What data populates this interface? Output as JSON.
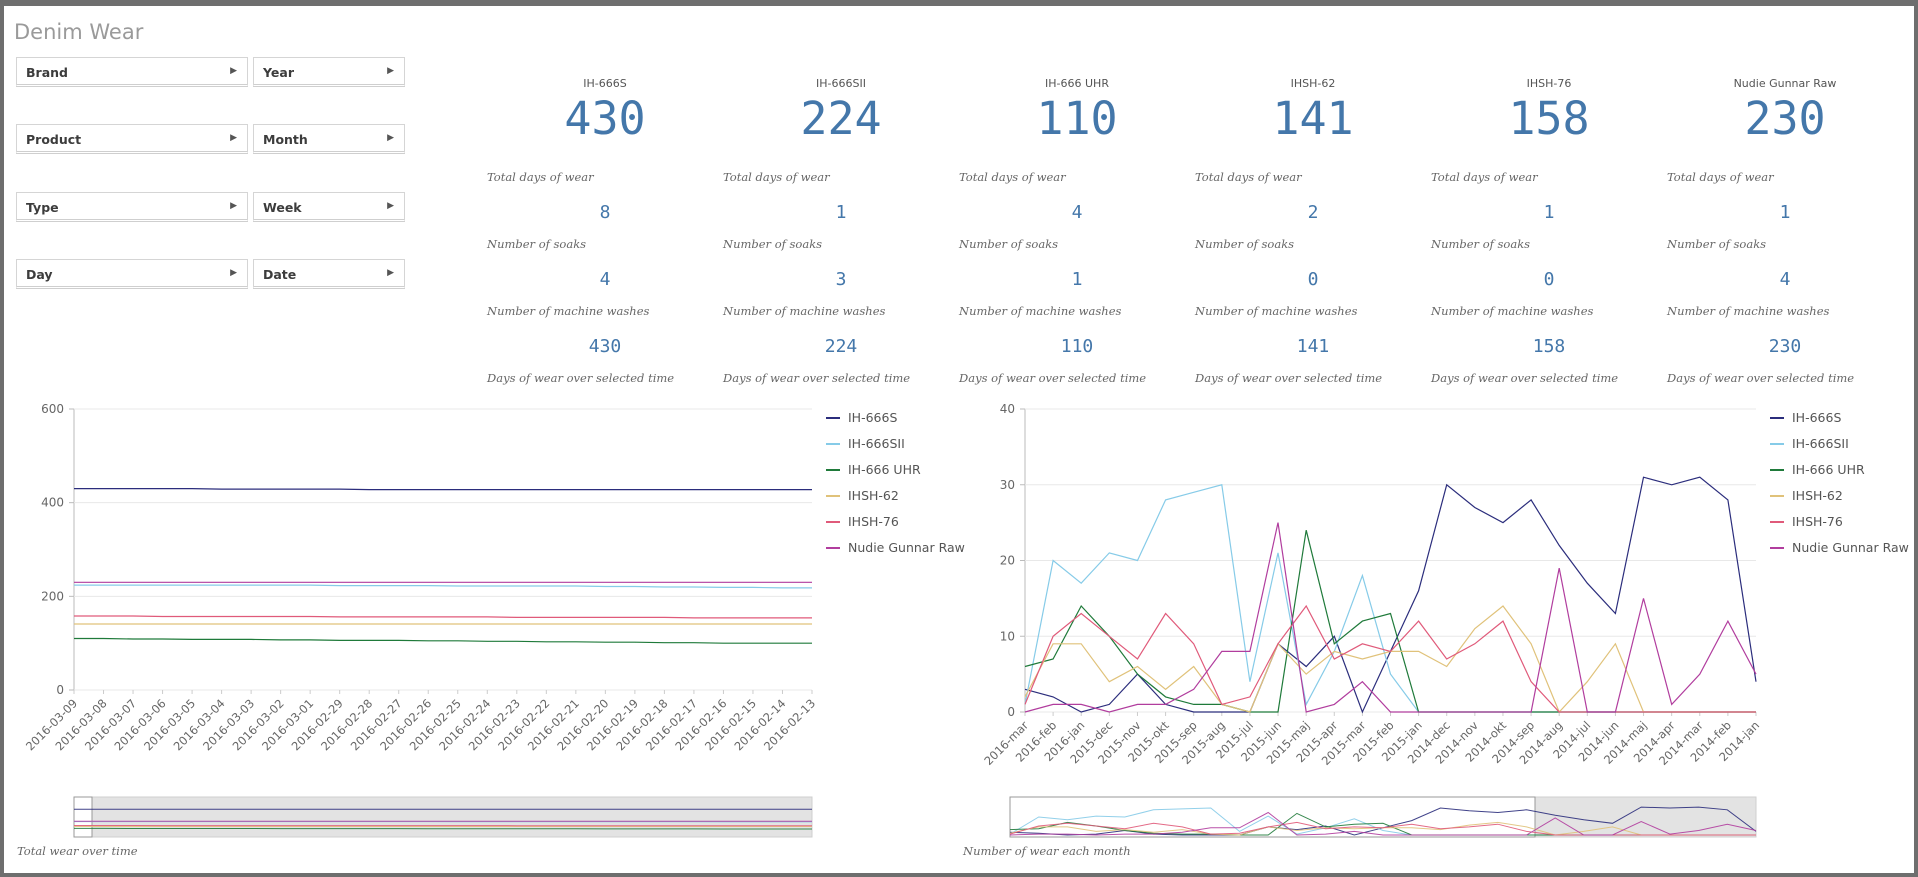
{
  "app": {
    "title": "Denim Wear"
  },
  "filters": [
    {
      "label": "Brand"
    },
    {
      "label": "Year"
    },
    {
      "label": "Product"
    },
    {
      "label": "Month"
    },
    {
      "label": "Type"
    },
    {
      "label": "Week"
    },
    {
      "label": "Day"
    },
    {
      "label": "Date"
    }
  ],
  "kpis": [
    {
      "name": "IH-666S",
      "total": "430",
      "soaks": "8",
      "washes": "4",
      "selected": "430"
    },
    {
      "name": "IH-666SII",
      "total": "224",
      "soaks": "1",
      "washes": "3",
      "selected": "224"
    },
    {
      "name": "IH-666 UHR",
      "total": "110",
      "soaks": "4",
      "washes": "1",
      "selected": "110"
    },
    {
      "name": "IHSH-62",
      "total": "141",
      "soaks": "2",
      "washes": "0",
      "selected": "141"
    },
    {
      "name": "IHSH-76",
      "total": "158",
      "soaks": "1",
      "washes": "0",
      "selected": "158"
    },
    {
      "name": "Nudie Gunnar Raw",
      "total": "230",
      "soaks": "1",
      "washes": "4",
      "selected": "230"
    }
  ],
  "kpi_labels": {
    "total": "Total days of wear",
    "soaks": "Number of soaks",
    "washes": "Number of machine washes",
    "selected": "Days of wear over selected time"
  },
  "colors": {
    "IH-666S": "#2b2d7c",
    "IH-666SII": "#86cbe8",
    "IH-666 UHR": "#1f7a3a",
    "IHSH-62": "#e0c27a",
    "IHSH-76": "#e05a7a",
    "Nudie Gunnar Raw": "#b13d9e",
    "kpi": "#4477aa"
  },
  "chart_data": [
    {
      "type": "line",
      "title": "Total wear over time",
      "ylim": [
        0,
        600
      ],
      "yticks": [
        0,
        200,
        400,
        600
      ],
      "x": [
        "2016-03-09",
        "2016-03-08",
        "2016-03-07",
        "2016-03-06",
        "2016-03-05",
        "2016-03-04",
        "2016-03-03",
        "2016-03-02",
        "2016-03-01",
        "2016-02-29",
        "2016-02-28",
        "2016-02-27",
        "2016-02-26",
        "2016-02-25",
        "2016-02-24",
        "2016-02-23",
        "2016-02-22",
        "2016-02-21",
        "2016-02-20",
        "2016-02-19",
        "2016-02-18",
        "2016-02-17",
        "2016-02-16",
        "2016-02-15",
        "2016-02-14",
        "2016-02-13"
      ],
      "series": [
        {
          "name": "IH-666S",
          "values": [
            430,
            430,
            430,
            430,
            430,
            429,
            429,
            429,
            429,
            429,
            428,
            428,
            428,
            428,
            428,
            428,
            428,
            428,
            428,
            428,
            428,
            428,
            428,
            428,
            428,
            428
          ]
        },
        {
          "name": "IH-666SII",
          "values": [
            224,
            224,
            224,
            224,
            224,
            224,
            224,
            224,
            224,
            223,
            223,
            223,
            223,
            222,
            222,
            222,
            222,
            222,
            221,
            221,
            220,
            220,
            219,
            219,
            218,
            218
          ]
        },
        {
          "name": "IH-666 UHR",
          "values": [
            110,
            110,
            109,
            109,
            108,
            108,
            108,
            107,
            107,
            106,
            106,
            106,
            105,
            105,
            104,
            104,
            103,
            103,
            102,
            102,
            101,
            101,
            100,
            100,
            100,
            100
          ]
        },
        {
          "name": "IHSH-62",
          "values": [
            141,
            141,
            141,
            141,
            141,
            141,
            141,
            141,
            141,
            141,
            141,
            141,
            141,
            141,
            141,
            141,
            141,
            141,
            141,
            141,
            141,
            141,
            141,
            141,
            141,
            141
          ]
        },
        {
          "name": "IHSH-76",
          "values": [
            158,
            158,
            158,
            157,
            157,
            157,
            157,
            157,
            157,
            156,
            156,
            156,
            156,
            156,
            156,
            155,
            155,
            155,
            155,
            155,
            155,
            154,
            154,
            154,
            154,
            154
          ]
        },
        {
          "name": "Nudie Gunnar Raw",
          "values": [
            230,
            230,
            230,
            230,
            230,
            230,
            230,
            230,
            230,
            230,
            230,
            230,
            230,
            230,
            230,
            230,
            230,
            230,
            230,
            230,
            230,
            230,
            230,
            230,
            230,
            230
          ]
        }
      ],
      "legend": "right"
    },
    {
      "type": "line",
      "title": "Number of wear each month",
      "ylim": [
        0,
        40
      ],
      "yticks": [
        0,
        10,
        20,
        30,
        40
      ],
      "x": [
        "2016-mar",
        "2016-feb",
        "2016-jan",
        "2015-dec",
        "2015-nov",
        "2015-okt",
        "2015-sep",
        "2015-aug",
        "2015-jul",
        "2015-jun",
        "2015-maj",
        "2015-apr",
        "2015-mar",
        "2015-feb",
        "2015-jan",
        "2014-dec",
        "2014-nov",
        "2014-okt",
        "2014-sep",
        "2014-aug",
        "2014-jul",
        "2014-jun",
        "2014-maj",
        "2014-apr",
        "2014-mar",
        "2014-feb",
        "2014-jan"
      ],
      "series": [
        {
          "name": "IH-666S",
          "values": [
            3,
            2,
            0,
            1,
            5,
            1,
            0,
            0,
            0,
            9,
            6,
            10,
            0,
            8,
            16,
            30,
            27,
            25,
            28,
            22,
            17,
            13,
            31,
            30,
            31,
            28,
            4
          ]
        },
        {
          "name": "IH-666SII",
          "values": [
            1,
            20,
            17,
            21,
            20,
            28,
            29,
            30,
            4,
            21,
            1,
            8,
            18,
            5,
            0,
            0,
            0,
            0,
            0,
            0,
            0,
            0,
            0,
            0,
            0,
            0,
            0
          ]
        },
        {
          "name": "IH-666 UHR",
          "values": [
            6,
            7,
            14,
            10,
            5,
            2,
            1,
            1,
            0,
            0,
            24,
            9,
            12,
            13,
            0,
            0,
            0,
            0,
            0,
            0,
            0,
            0,
            0,
            0,
            0,
            0,
            0
          ]
        },
        {
          "name": "IHSH-62",
          "values": [
            2,
            9,
            9,
            4,
            6,
            3,
            6,
            1,
            0,
            9,
            5,
            8,
            7,
            8,
            8,
            6,
            11,
            14,
            9,
            0,
            4,
            9,
            0,
            0,
            0,
            0,
            0
          ]
        },
        {
          "name": "IHSH-76",
          "values": [
            1,
            10,
            13,
            10,
            7,
            13,
            9,
            1,
            2,
            9,
            14,
            7,
            9,
            8,
            12,
            7,
            9,
            12,
            4,
            0,
            0,
            0,
            0,
            0,
            0,
            0,
            0
          ]
        },
        {
          "name": "Nudie Gunnar Raw",
          "values": [
            0,
            1,
            1,
            0,
            1,
            1,
            3,
            8,
            8,
            25,
            0,
            1,
            4,
            0,
            0,
            0,
            0,
            0,
            0,
            19,
            0,
            0,
            15,
            1,
            5,
            12,
            5
          ]
        }
      ],
      "legend": "right"
    }
  ]
}
